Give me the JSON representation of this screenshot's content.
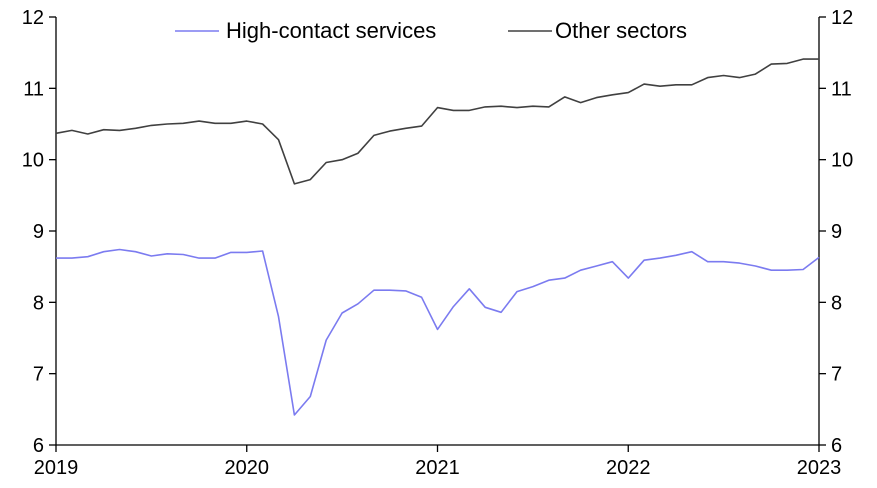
{
  "chart_data": {
    "type": "line",
    "title": "",
    "xlabel": "",
    "ylabel": "",
    "ylim": [
      6,
      12
    ],
    "xlim": [
      2019,
      2023
    ],
    "x_ticks": [
      "2019",
      "2020",
      "2021",
      "2022",
      "2023"
    ],
    "y_ticks": [
      "6",
      "7",
      "8",
      "9",
      "10",
      "11",
      "12"
    ],
    "grid": false,
    "legend_position": "top",
    "x": [
      "2019-01",
      "2019-02",
      "2019-03",
      "2019-04",
      "2019-05",
      "2019-06",
      "2019-07",
      "2019-08",
      "2019-09",
      "2019-10",
      "2019-11",
      "2019-12",
      "2020-01",
      "2020-02",
      "2020-03",
      "2020-04",
      "2020-05",
      "2020-06",
      "2020-07",
      "2020-08",
      "2020-09",
      "2020-10",
      "2020-11",
      "2020-12",
      "2021-01",
      "2021-02",
      "2021-03",
      "2021-04",
      "2021-05",
      "2021-06",
      "2021-07",
      "2021-08",
      "2021-09",
      "2021-10",
      "2021-11",
      "2021-12",
      "2022-01",
      "2022-02",
      "2022-03",
      "2022-04",
      "2022-05",
      "2022-06",
      "2022-07",
      "2022-08",
      "2022-09",
      "2022-10",
      "2022-11",
      "2022-12",
      "2023-01"
    ],
    "series": [
      {
        "name": "High-contact services",
        "color": "#7b7bf0",
        "values": [
          8.62,
          8.62,
          8.64,
          8.71,
          8.74,
          8.71,
          8.65,
          8.68,
          8.67,
          8.62,
          8.62,
          8.7,
          8.7,
          8.72,
          7.8,
          6.42,
          6.68,
          7.47,
          7.85,
          7.98,
          8.17,
          8.17,
          8.16,
          8.07,
          7.62,
          7.94,
          8.19,
          7.93,
          7.86,
          8.15,
          8.22,
          8.31,
          8.34,
          8.45,
          8.51,
          8.57,
          8.34,
          8.59,
          8.62,
          8.66,
          8.71,
          8.57,
          8.57,
          8.55,
          8.51,
          8.45,
          8.45,
          8.46,
          8.63
        ]
      },
      {
        "name": "Other sectors",
        "color": "#404040",
        "values": [
          10.37,
          10.41,
          10.36,
          10.42,
          10.41,
          10.44,
          10.48,
          10.5,
          10.51,
          10.54,
          10.51,
          10.51,
          10.54,
          10.5,
          10.28,
          9.66,
          9.72,
          9.96,
          10.0,
          10.09,
          10.34,
          10.4,
          10.44,
          10.47,
          10.73,
          10.69,
          10.69,
          10.74,
          10.75,
          10.73,
          10.75,
          10.74,
          10.88,
          10.8,
          10.87,
          10.91,
          10.94,
          11.06,
          11.03,
          11.05,
          11.05,
          11.15,
          11.18,
          11.15,
          11.2,
          11.34,
          11.35,
          11.41,
          11.41
        ]
      }
    ]
  }
}
